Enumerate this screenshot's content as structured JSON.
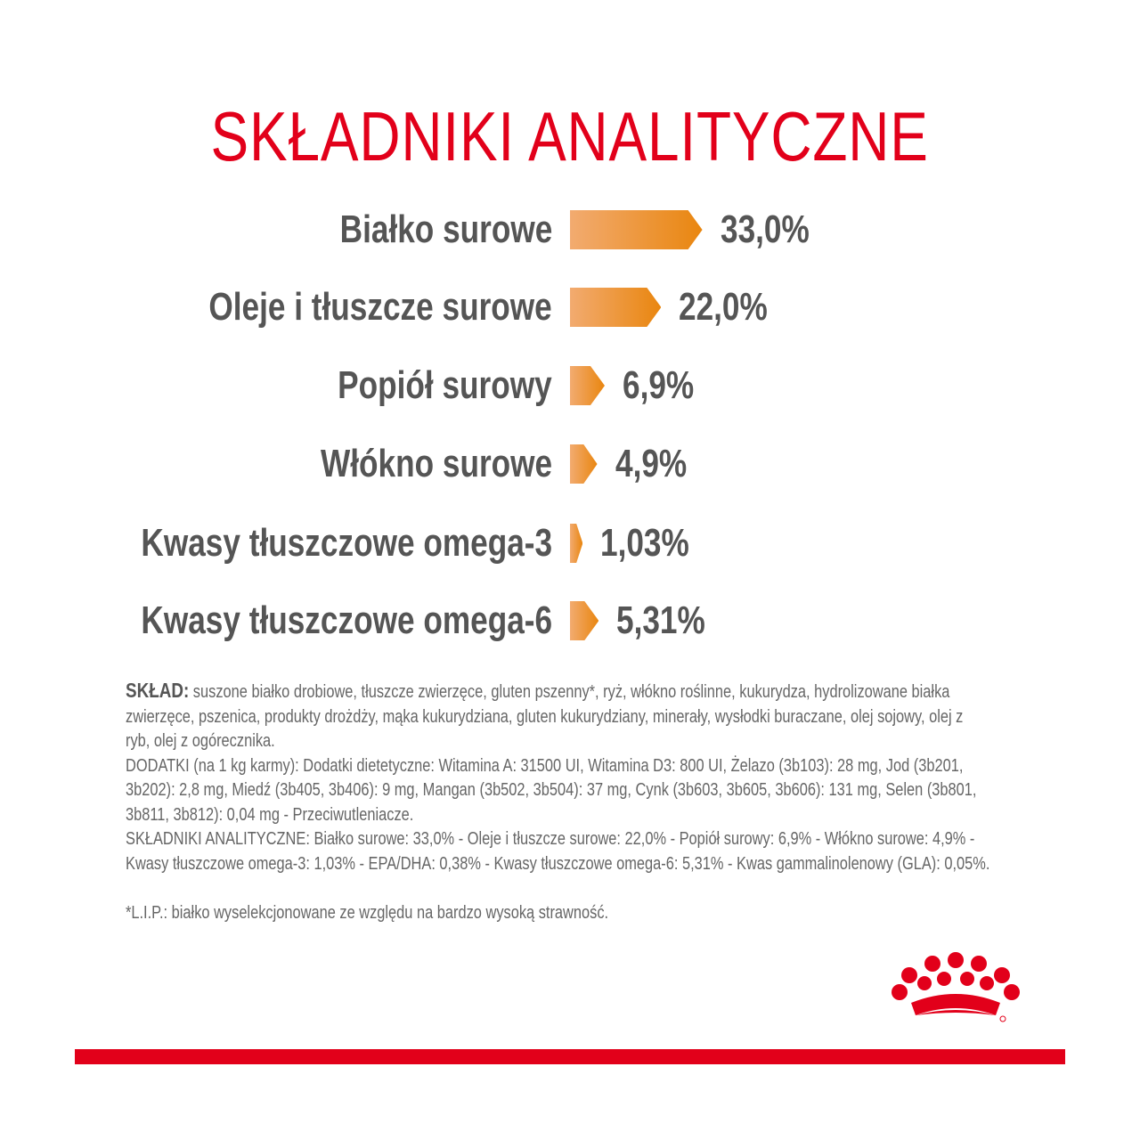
{
  "chart_data": {
    "type": "bar",
    "title": "SKŁADNIKI ANALITYCZNE",
    "orientation": "horizontal",
    "categories": [
      "Białko surowe",
      "Oleje i tłuszcze surowe",
      "Popiół surowy",
      "Włókno surowe",
      "Kwasy tłuszczowe omega-3",
      "Kwasy tłuszczowe omega-6"
    ],
    "values": [
      33.0,
      22.0,
      6.9,
      4.9,
      1.03,
      5.31
    ],
    "value_labels": [
      "33,0%",
      "22,0%",
      "6,9%",
      "4,9%",
      "1,03%",
      "5,31%"
    ],
    "unit": "%",
    "grid": false,
    "colors": {
      "bar_start": "#f2ab70",
      "bar_end": "#e9860f",
      "title": "#e2001a"
    }
  },
  "composition": {
    "sklad_label": "SKŁAD:",
    "lines": [
      " suszone białko drobiowe, tłuszcze zwierzęce, gluten pszenny*, ryż, włókno roślinne, kukurydza, hydrolizowane białka",
      "zwierzęce, pszenica, produkty drożdży, mąka kukurydziana, gluten kukurydziany, minerały, wysłodki buraczane, olej sojowy, olej z",
      "ryb, olej z ogórecznika.",
      "DODATKI (na 1 kg karmy): Dodatki dietetyczne: Witamina A: 31500 UI, Witamina D3: 800 UI, Żelazo (3b103): 28 mg, Jod (3b201,",
      "3b202): 2,8 mg, Miedź (3b405, 3b406): 9 mg, Mangan (3b502, 3b504): 37 mg, Cynk (3b603, 3b605, 3b606): 131 mg, Selen (3b801,",
      "3b811, 3b812): 0,04 mg - Przeciwutleniacze.",
      "SKŁADNIKI ANALITYCZNE: Białko surowe: 33,0% - Oleje i tłuszcze surowe: 22,0% - Popiół surowy: 6,9% - Włókno surowe: 4,9% -",
      "Kwasy tłuszczowe omega-3: 1,03% - EPA/DHA: 0,38% - Kwasy tłuszczowe omega-6: 5,31% - Kwas gammalinolenowy (GLA): 0,05%."
    ],
    "footnote": "*L.I.P.: białko wyselekcjonowane ze względu na bardzo wysoką strawność."
  },
  "brand": {
    "logo": "royal-canin-crown-logo",
    "color": "#e2001a"
  }
}
